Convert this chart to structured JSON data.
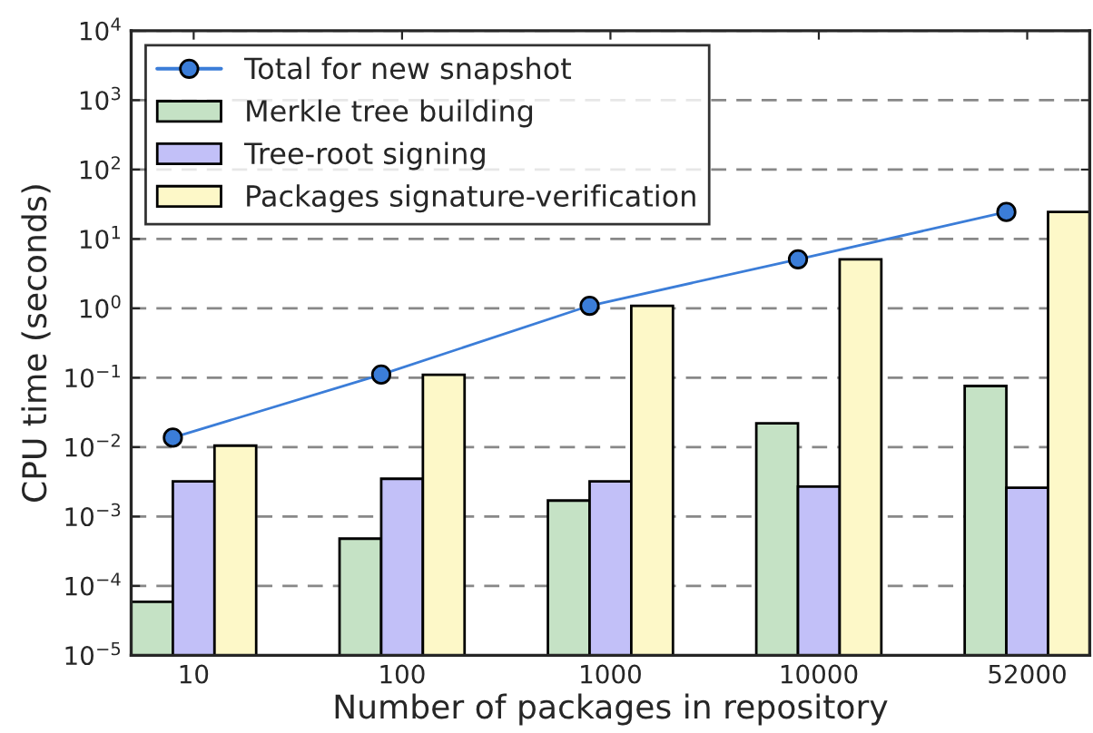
{
  "chart_data": {
    "type": "bar",
    "xlabel": "Number of packages in repository",
    "ylabel": "CPU time (seconds)",
    "categories": [
      "10",
      "100",
      "1000",
      "10000",
      "52000"
    ],
    "series": [
      {
        "name": "Total for new snapshot",
        "type": "line",
        "color": "#3b7dd8",
        "marker": "circle",
        "values": [
          0.0137,
          0.111,
          1.09,
          5.1,
          24.5
        ]
      },
      {
        "name": "Merkle tree building",
        "color": "#c5e2c5",
        "values": [
          5.9e-05,
          0.00048,
          0.0017,
          0.022,
          0.076
        ]
      },
      {
        "name": "Tree-root signing",
        "color": "#c2c0f8",
        "values": [
          0.0032,
          0.0035,
          0.0032,
          0.0027,
          0.0026
        ]
      },
      {
        "name": "Packages signature-verification",
        "color": "#fdf8c8",
        "values": [
          0.0105,
          0.11,
          1.09,
          5.1,
          24.5
        ]
      }
    ],
    "log": true,
    "ylim": [
      1e-05,
      10000
    ],
    "yticks": [
      {
        "value": 1e-05,
        "label": "10$^{−5}$"
      },
      {
        "value": 0.0001,
        "label": "10$^{−4}$"
      },
      {
        "value": 0.001,
        "label": "10$^{−3}$"
      },
      {
        "value": 0.01,
        "label": "10$^{−2}$"
      },
      {
        "value": 0.1,
        "label": "10$^{−1}$"
      },
      {
        "value": 1,
        "label": "10$^{0}$"
      },
      {
        "value": 10,
        "label": "10$^{1}$"
      },
      {
        "value": 100,
        "label": "10$^{2}$"
      },
      {
        "value": 1000,
        "label": "10$^{3}$"
      },
      {
        "value": 10000,
        "label": "10$^{4}$"
      }
    ],
    "grid": "y",
    "legend": "top left"
  }
}
